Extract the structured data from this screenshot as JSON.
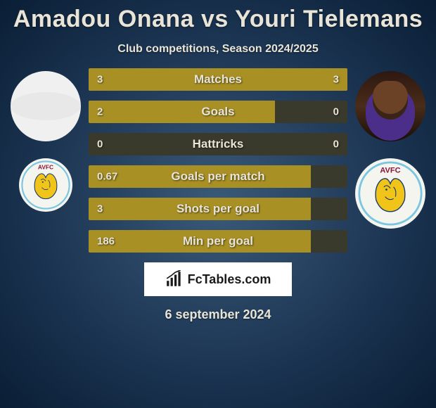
{
  "title": "Amadou Onana vs Youri Tielemans",
  "subtitle": "Club competitions, Season 2024/2025",
  "date": "6 september 2024",
  "footer_brand": "FcTables.com",
  "bar_colors": {
    "fill": "#a89024",
    "track": "#3a3a2c",
    "text": "#e8e4d8"
  },
  "background": "radial-gradient(ellipse, #3a5a7a, #0a1e35)",
  "bars": {
    "max_ratio_single_side": 0.5,
    "rows": [
      {
        "label": "Matches",
        "left": "3",
        "right": "3",
        "left_frac": 0.5,
        "right_frac": 0.5
      },
      {
        "label": "Goals",
        "left": "2",
        "right": "0",
        "left_frac": 0.72,
        "right_frac": 0.0
      },
      {
        "label": "Hattricks",
        "left": "0",
        "right": "0",
        "left_frac": 0.0,
        "right_frac": 0.0
      },
      {
        "label": "Goals per match",
        "left": "0.67",
        "right": "",
        "left_frac": 0.86,
        "right_frac": 0.0
      },
      {
        "label": "Shots per goal",
        "left": "3",
        "right": "",
        "left_frac": 0.86,
        "right_frac": 0.0
      },
      {
        "label": "Min per goal",
        "left": "186",
        "right": "",
        "left_frac": 0.86,
        "right_frac": 0.0
      }
    ]
  },
  "left": {
    "player_name": "Amadou Onana",
    "club_short": "AVFC"
  },
  "right": {
    "player_name": "Youri Tielemans",
    "club_short": "AVFC"
  },
  "club_badge_svg": {
    "ring_color": "#7ac5e0",
    "text_color": "#8a1538",
    "lion_color": "#f0c419",
    "lion_stroke": "#1a3a6e"
  }
}
